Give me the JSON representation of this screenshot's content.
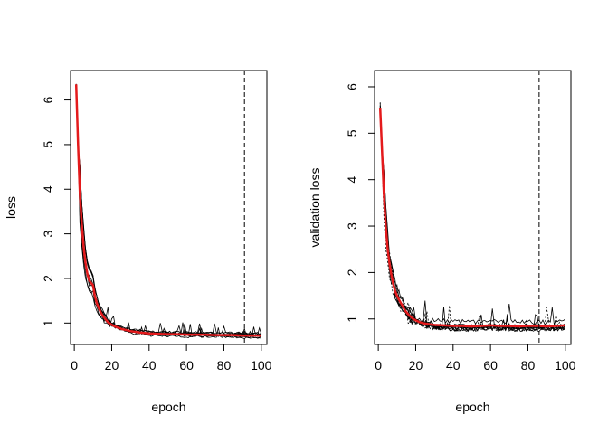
{
  "chart_data": [
    {
      "type": "line",
      "title": "",
      "xlabel": "epoch",
      "ylabel": "loss",
      "xlim": [
        -2,
        103
      ],
      "ylim": [
        0.52,
        6.66
      ],
      "xticks": [
        0,
        20,
        40,
        60,
        80,
        100
      ],
      "yticks": [
        1,
        2,
        3,
        4,
        5,
        6
      ],
      "vline": {
        "x": 91,
        "style": "dashed"
      },
      "mean_series": {
        "color": "#e41a1c",
        "x": [
          1,
          2,
          3,
          4,
          5,
          6,
          7,
          8,
          9,
          10,
          11,
          12,
          13,
          14,
          15,
          16,
          18,
          20,
          22,
          25,
          28,
          30,
          35,
          40,
          45,
          50,
          55,
          60,
          65,
          70,
          75,
          80,
          85,
          90,
          95,
          100
        ],
        "y": [
          6.35,
          5.0,
          3.9,
          3.2,
          2.7,
          2.35,
          2.1,
          1.95,
          1.9,
          1.85,
          1.6,
          1.45,
          1.35,
          1.25,
          1.18,
          1.12,
          1.02,
          0.96,
          0.92,
          0.87,
          0.84,
          0.82,
          0.79,
          0.77,
          0.76,
          0.75,
          0.75,
          0.74,
          0.74,
          0.74,
          0.73,
          0.73,
          0.73,
          0.72,
          0.72,
          0.72
        ]
      },
      "runs": {
        "count": 10,
        "color": "#000000",
        "seed": 7
      }
    },
    {
      "type": "line",
      "title": "",
      "xlabel": "epoch",
      "ylabel": "validation loss",
      "xlim": [
        -2,
        103
      ],
      "ylim": [
        0.45,
        6.35
      ],
      "xticks": [
        0,
        20,
        40,
        60,
        80,
        100
      ],
      "yticks": [
        1,
        2,
        3,
        4,
        5,
        6
      ],
      "vline": {
        "x": 86,
        "style": "dashed"
      },
      "mean_series": {
        "color": "#e41a1c",
        "x": [
          1,
          2,
          3,
          4,
          5,
          6,
          7,
          8,
          9,
          10,
          11,
          12,
          13,
          14,
          15,
          16,
          18,
          20,
          22,
          25,
          28,
          30,
          35,
          40,
          45,
          50,
          55,
          60,
          65,
          70,
          75,
          80,
          85,
          90,
          95,
          100
        ],
        "y": [
          5.55,
          4.6,
          3.7,
          3.0,
          2.5,
          2.2,
          1.95,
          1.75,
          1.6,
          1.5,
          1.42,
          1.35,
          1.28,
          1.2,
          1.15,
          1.1,
          1.02,
          0.97,
          0.93,
          0.9,
          0.88,
          0.87,
          0.86,
          0.85,
          0.85,
          0.84,
          0.85,
          0.86,
          0.85,
          0.85,
          0.84,
          0.85,
          0.85,
          0.84,
          0.85,
          0.86
        ]
      },
      "runs": {
        "count": 10,
        "color": "#000000",
        "seed": 13
      }
    }
  ]
}
